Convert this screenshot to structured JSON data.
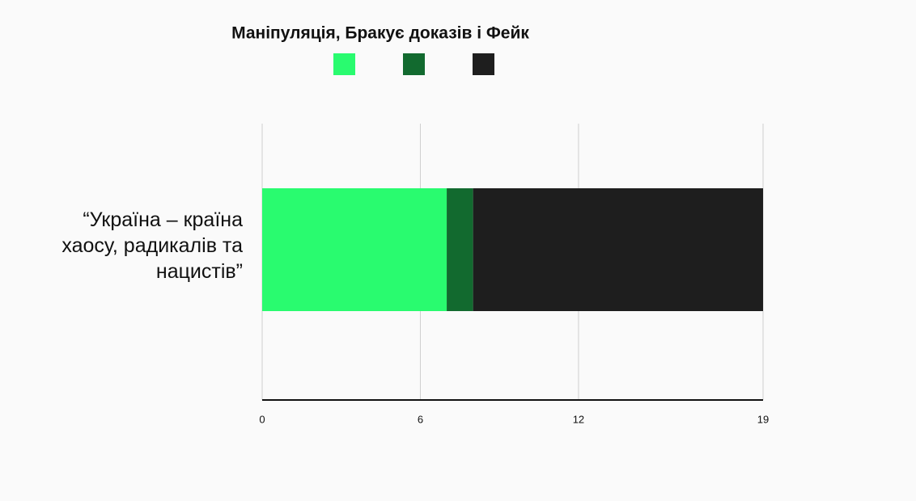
{
  "chart_data": {
    "type": "stacked-bar-horizontal",
    "title": "Маніпуляція, Бракує доказів і Фейк",
    "categories": [
      "“Україна – країна хаосу, радикалів та нацистів”"
    ],
    "series": [
      {
        "color": "#29fb6f",
        "values": [
          7
        ]
      },
      {
        "color": "#126a2f",
        "values": [
          1
        ]
      },
      {
        "color": "#1e1e1e",
        "values": [
          11
        ]
      }
    ],
    "xlim": [
      0,
      19
    ],
    "xticks": [
      0,
      6,
      12,
      19
    ],
    "grid": true
  }
}
